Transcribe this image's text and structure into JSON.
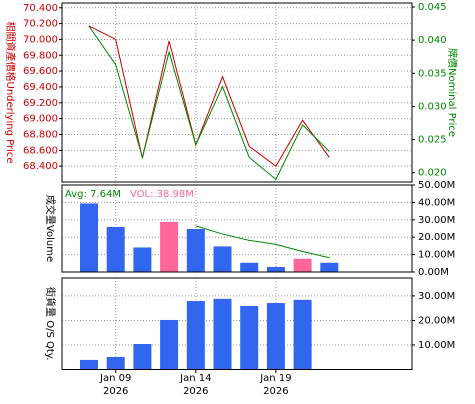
{
  "chart_data": [
    {
      "type": "line",
      "y_label": "相關資產價格Underlying Price",
      "y2_label": "牌價Nominal Price",
      "ylim": [
        68.2,
        70.46
      ],
      "yticks": [
        {
          "value": 68.4,
          "label": "68.400"
        },
        {
          "value": 68.6,
          "label": "68.600"
        },
        {
          "value": 68.8,
          "label": "68.800"
        },
        {
          "value": 69.0,
          "label": "69.000"
        },
        {
          "value": 69.2,
          "label": "69.200"
        },
        {
          "value": 69.4,
          "label": "69.400"
        },
        {
          "value": 69.6,
          "label": "69.600"
        },
        {
          "value": 69.8,
          "label": "69.800"
        },
        {
          "value": 70.0,
          "label": "70.000"
        },
        {
          "value": 70.2,
          "label": "70.200"
        },
        {
          "value": 70.4,
          "label": "70.400"
        }
      ],
      "y2lim": [
        0.0186,
        0.0456
      ],
      "y2ticks": [
        {
          "value": 0.02,
          "label": "0.020"
        },
        {
          "value": 0.025,
          "label": "0.025"
        },
        {
          "value": 0.03,
          "label": "0.030"
        },
        {
          "value": 0.035,
          "label": "0.035"
        },
        {
          "value": 0.04,
          "label": "0.040"
        },
        {
          "value": 0.045,
          "label": "0.045"
        }
      ],
      "series": [
        {
          "name": "Underlying Price",
          "color": "#cc0000",
          "values": [
            70.17,
            70.0,
            68.5,
            69.98,
            68.67,
            69.53,
            68.65,
            68.4,
            68.98,
            68.51
          ]
        },
        {
          "name": "Nominal Price",
          "color": "#008800",
          "axis": "y2",
          "values": [
            0.0421,
            0.0363,
            0.0223,
            0.0382,
            0.0242,
            0.033,
            0.0223,
            0.019,
            0.0272,
            0.0232
          ]
        }
      ]
    },
    {
      "type": "bar",
      "y_label": "成交量Volume",
      "avg_label": "Avg: 7.64M",
      "vol_label": "VOL: 38.98M",
      "ylim": [
        0,
        50
      ],
      "yticks": [
        {
          "value": 0,
          "label": "0.00M"
        },
        {
          "value": 10,
          "label": "10.00M"
        },
        {
          "value": 20,
          "label": "20.00M"
        },
        {
          "value": 30,
          "label": "30.00M"
        },
        {
          "value": 40,
          "label": "40.00M"
        },
        {
          "value": 50,
          "label": "50.00M"
        }
      ],
      "values": [
        39.4,
        25.9,
        14.1,
        28.8,
        24.7,
        14.7,
        5.3,
        2.9,
        7.6,
        5.3
      ],
      "colors": [
        "#3366ee",
        "#3366ee",
        "#3366ee",
        "#ff6699",
        "#3366ee",
        "#3366ee",
        "#3366ee",
        "#3366ee",
        "#ff6699",
        "#3366ee"
      ],
      "avg_color": "#008800",
      "avg_values": [
        null,
        null,
        null,
        null,
        26.5,
        21.8,
        18.2,
        15.9,
        11.8,
        8.2
      ]
    },
    {
      "type": "bar",
      "y_label": "街貨量 O/S Qty.",
      "ylim": [
        0,
        37.3
      ],
      "yticks": [
        {
          "value": 10,
          "label": "10.00M"
        },
        {
          "value": 20,
          "label": "20.00M"
        },
        {
          "value": 30,
          "label": "30.00M"
        }
      ],
      "values": [
        3.9,
        5.1,
        10.4,
        20.2,
        27.9,
        28.8,
        25.9,
        27.1,
        28.4,
        null
      ],
      "color": "#3366ee",
      "categories": [
        null,
        "Jan 09",
        null,
        null,
        "Jan 14",
        null,
        null,
        "Jan 19",
        null,
        null
      ],
      "sublabels": [
        null,
        "2026",
        null,
        null,
        "2026",
        null,
        null,
        "2026",
        null,
        null
      ]
    }
  ]
}
